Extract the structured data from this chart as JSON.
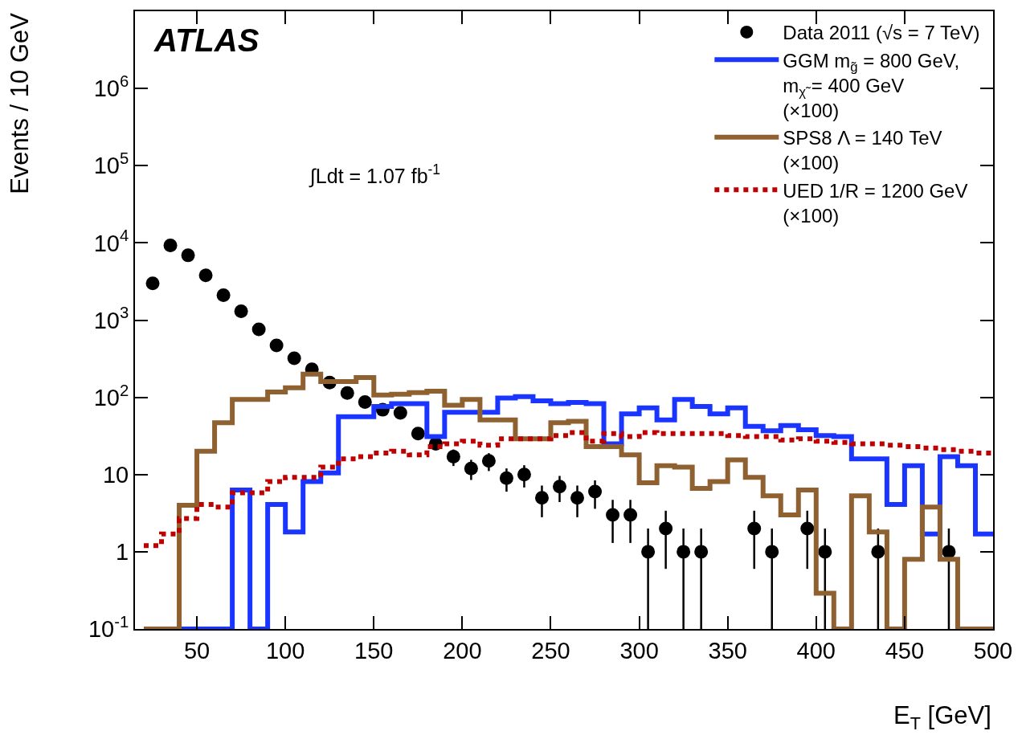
{
  "chart_data": {
    "type": "histogram",
    "xlabel": "E$_{T}$ [GeV]",
    "ylabel": "Events / 10 GeV",
    "annotations": [
      "ATLAS",
      "∫Ldt = 1.07 fb$^{-1}$"
    ],
    "log": "y",
    "legend": "top right",
    "xlim": [
      15,
      500
    ],
    "xticks": [
      50,
      100,
      150,
      200,
      250,
      300,
      350,
      400,
      450,
      500
    ],
    "ylim": [
      0.1,
      10000000
    ],
    "yticks": [
      {
        "value": 0.1,
        "label": "10$^{-1}$"
      },
      1,
      10,
      {
        "value": 100,
        "label": "10$^{2}$"
      },
      {
        "value": 1000,
        "label": "10$^{3}$"
      },
      {
        "value": 10000,
        "label": "10$^{4}$"
      },
      {
        "value": 100000,
        "label": "10$^{5}$"
      },
      {
        "value": 1000000,
        "label": "10$^{6}$"
      }
    ],
    "bins": [
      20,
      30,
      40,
      50,
      60,
      70,
      80,
      90,
      100,
      110,
      120,
      130,
      140,
      150,
      160,
      170,
      180,
      190,
      200,
      210,
      220,
      230,
      240,
      250,
      260,
      270,
      280,
      290,
      300,
      310,
      320,
      330,
      340,
      350,
      360,
      370,
      380,
      390,
      400,
      410,
      420,
      430,
      440,
      450,
      460,
      470,
      480,
      490,
      500
    ],
    "series": [
      {
        "name": "Data 2011 (√s = 7 TeV)",
        "type": "scatter",
        "color": "#000000",
        "marker": "circle",
        "x": [
          25,
          35,
          45,
          55,
          65,
          75,
          85,
          95,
          105,
          115,
          125,
          135,
          145,
          155,
          165,
          175,
          185,
          195,
          205,
          215,
          225,
          235,
          245,
          255,
          265,
          275,
          285,
          295,
          305,
          315,
          325,
          335,
          365,
          375,
          395,
          405,
          435,
          475
        ],
        "values": [
          3000,
          9300,
          6900,
          3800,
          2100,
          1300,
          760,
          470,
          320,
          230,
          155,
          114,
          87,
          69,
          63,
          34,
          25,
          17,
          12,
          15,
          9,
          10,
          5,
          7,
          5,
          6,
          3,
          3,
          1,
          2,
          1,
          1,
          2,
          1,
          2,
          1,
          1,
          1
        ],
        "errors": [
          null,
          null,
          null,
          null,
          null,
          null,
          null,
          null,
          null,
          null,
          null,
          null,
          null,
          null,
          null,
          null,
          null,
          4.1,
          3.5,
          3.9,
          3,
          3.2,
          2.2,
          2.6,
          2.2,
          2.4,
          1.7,
          1.7,
          [
            0.1,
            2
          ],
          1.4,
          [
            0.1,
            2
          ],
          [
            0.1,
            2
          ],
          1.4,
          [
            0.1,
            2
          ],
          1.4,
          [
            0.1,
            2
          ],
          [
            0.1,
            2
          ],
          [
            0.1,
            2
          ]
        ]
      },
      {
        "name": "GGM m$_{g̃}$ = 800 GeV,\nm$_{χ̃}$ = 400 GeV\n(×100)",
        "color": "#1a35ff",
        "line_style": "solid",
        "values": [
          0.1,
          0.1,
          0.1,
          0.1,
          0.1,
          6.3,
          0.1,
          4.1,
          1.8,
          8.1,
          10.5,
          56,
          56,
          76,
          83,
          83,
          31,
          64,
          64,
          64,
          98,
          102,
          90,
          83,
          86,
          83,
          25,
          61,
          73,
          51,
          94,
          76,
          61,
          73,
          42,
          37,
          43,
          38,
          32,
          31,
          16,
          16,
          4.1,
          13,
          1.7,
          17,
          13,
          1.7
        ]
      },
      {
        "name": "SPS8 Λ = 140 TeV\n(×100)",
        "color": "#8f6130",
        "line_style": "solid",
        "values": [
          0.1,
          0.1,
          4,
          20,
          47,
          94,
          94,
          117,
          133,
          200,
          160,
          160,
          180,
          107,
          110,
          115,
          120,
          79,
          94,
          51,
          51,
          29,
          29,
          47,
          49,
          23,
          23,
          18,
          7.8,
          13,
          12.5,
          6.6,
          8.1,
          15.5,
          9.2,
          5.3,
          3,
          6.3,
          0.29,
          0.1,
          5.3,
          1.8,
          0.1,
          0.8,
          3.8,
          0.8,
          0.1,
          0.1
        ]
      },
      {
        "name": "UED 1/R = 1200 GeV\n(×100)",
        "color": "#c00000",
        "line_style": "dotted",
        "values": [
          1.2,
          1.7,
          2.7,
          4.1,
          3.8,
          5.8,
          5.8,
          8.1,
          9.2,
          9.2,
          12.5,
          16,
          17,
          19,
          20,
          18,
          23,
          25,
          27,
          24,
          29,
          29,
          29,
          32,
          35,
          27,
          34,
          31,
          35,
          34,
          34,
          34,
          34,
          32,
          31,
          31,
          28,
          29,
          27,
          26,
          25,
          25,
          24,
          23,
          22,
          21,
          20,
          19
        ]
      }
    ]
  }
}
